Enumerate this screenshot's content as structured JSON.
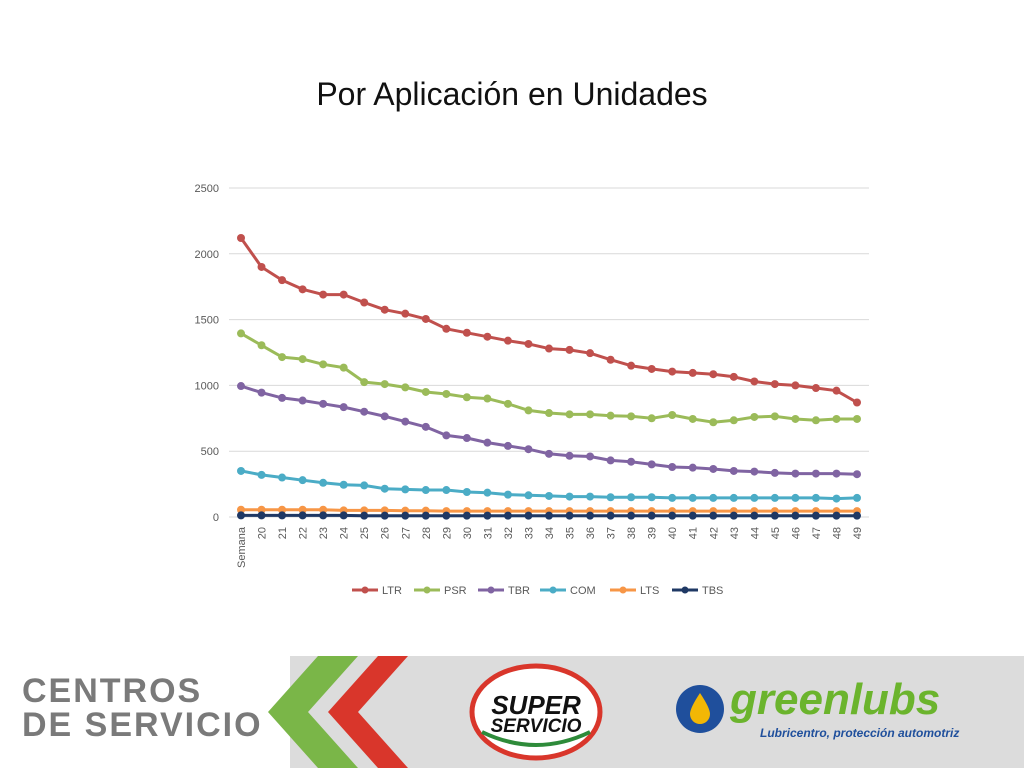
{
  "slide": {
    "title": "Por Aplicación en Unidades"
  },
  "footer": {
    "brand_line1": "CENTROS",
    "brand_line2": "DE SERVICIO",
    "super_line1": "SUPER",
    "super_line2": "SERVICIO",
    "greenlubs_name": "greenlubs",
    "greenlubs_tagline": "Lubricentro, protección automotriz"
  },
  "colors": {
    "LTR": "#c0504d",
    "PSR": "#9bbb59",
    "TBR": "#8064a2",
    "COM": "#4bacc6",
    "LTS": "#f79646",
    "TBS": "#1f3864",
    "grid": "#d9d9d9",
    "tick_text": "#595959",
    "chevron_green": "#7ab648",
    "chevron_red": "#d9362b"
  },
  "chart_data": {
    "type": "line",
    "categories": [
      "Semana",
      "20",
      "21",
      "22",
      "23",
      "24",
      "25",
      "26",
      "27",
      "28",
      "29",
      "30",
      "31",
      "32",
      "33",
      "34",
      "35",
      "36",
      "37",
      "38",
      "39",
      "40",
      "41",
      "42",
      "43",
      "44",
      "45",
      "46",
      "47",
      "48",
      "49"
    ],
    "ylim": [
      0,
      2500
    ],
    "yticks": [
      0,
      500,
      1000,
      1500,
      2000,
      2500
    ],
    "grid": true,
    "legend_position": "bottom",
    "series": [
      {
        "name": "LTR",
        "values": [
          2120,
          1900,
          1800,
          1730,
          1690,
          1690,
          1630,
          1575,
          1545,
          1505,
          1430,
          1400,
          1370,
          1340,
          1315,
          1280,
          1270,
          1245,
          1195,
          1150,
          1125,
          1105,
          1095,
          1085,
          1065,
          1030,
          1010,
          1000,
          980,
          960,
          870
        ]
      },
      {
        "name": "PSR",
        "values": [
          1395,
          1305,
          1215,
          1200,
          1160,
          1135,
          1025,
          1010,
          985,
          950,
          935,
          910,
          900,
          860,
          810,
          790,
          780,
          780,
          770,
          765,
          750,
          775,
          745,
          720,
          735,
          760,
          765,
          745,
          735,
          745,
          745
        ]
      },
      {
        "name": "TBR",
        "values": [
          995,
          945,
          905,
          885,
          860,
          835,
          800,
          765,
          725,
          685,
          620,
          600,
          565,
          540,
          515,
          480,
          465,
          460,
          430,
          420,
          400,
          380,
          375,
          365,
          350,
          345,
          335,
          330,
          330,
          330,
          325
        ]
      },
      {
        "name": "COM",
        "values": [
          350,
          320,
          300,
          280,
          260,
          245,
          240,
          215,
          210,
          205,
          205,
          190,
          185,
          170,
          165,
          160,
          155,
          155,
          150,
          150,
          150,
          145,
          145,
          145,
          145,
          145,
          145,
          145,
          145,
          140,
          145
        ]
      },
      {
        "name": "LTS",
        "values": [
          55,
          55,
          55,
          55,
          55,
          50,
          50,
          50,
          48,
          48,
          45,
          45,
          45,
          45,
          45,
          45,
          45,
          45,
          45,
          45,
          45,
          45,
          45,
          45,
          45,
          45,
          45,
          45,
          45,
          45,
          45
        ]
      },
      {
        "name": "TBS",
        "values": [
          12,
          12,
          12,
          12,
          12,
          12,
          10,
          10,
          10,
          10,
          10,
          10,
          10,
          10,
          10,
          10,
          10,
          10,
          10,
          10,
          10,
          10,
          10,
          10,
          10,
          10,
          10,
          10,
          10,
          10,
          10
        ]
      }
    ]
  }
}
